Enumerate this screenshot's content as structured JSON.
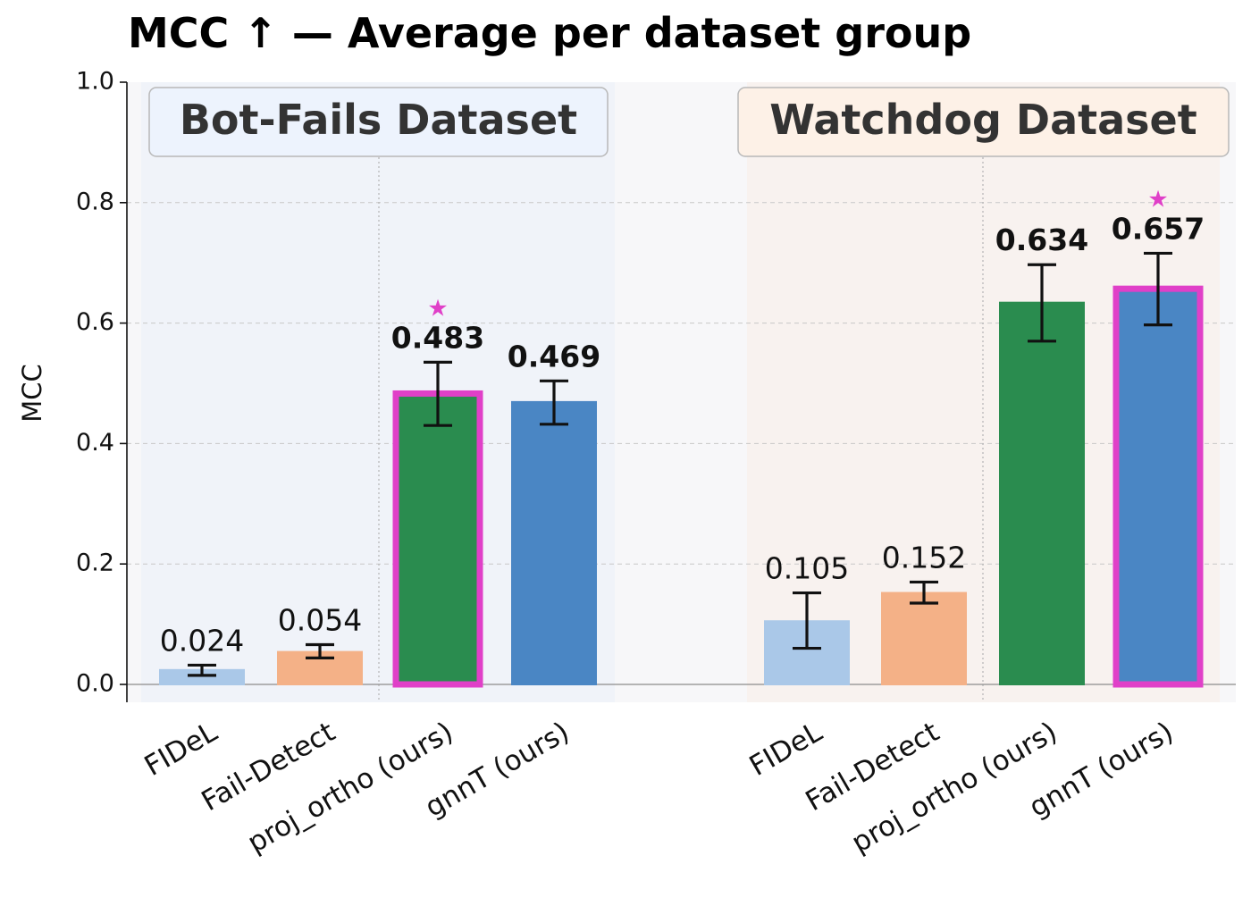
{
  "chart_data": {
    "type": "bar",
    "title": "MCC ↑ — Average per dataset group",
    "ylabel": "MCC",
    "xlabel": "",
    "ylim": [
      0,
      1.0
    ],
    "yticks": [
      "0.0",
      "0.2",
      "0.4",
      "0.6",
      "0.8",
      "1.0"
    ],
    "grid": true,
    "groups": [
      {
        "name": "Bot-Fails Dataset",
        "background_color": "#e6edf8",
        "label_box_color": "#edf3fd",
        "bars": [
          {
            "label": "FIDeL",
            "value": 0.024,
            "value_label": "0.024",
            "err_low": 0.015,
            "err_high": 0.032,
            "color": "#aac8e8",
            "bold": false,
            "best": false
          },
          {
            "label": "Fail-Detect",
            "value": 0.054,
            "value_label": "0.054",
            "err_low": 0.044,
            "err_high": 0.066,
            "color": "#f4b187",
            "bold": false,
            "best": false
          },
          {
            "label": "proj_ortho (ours)",
            "value": 0.483,
            "value_label": "0.483",
            "err_low": 0.43,
            "err_high": 0.535,
            "color": "#2a8c4f",
            "bold": true,
            "best": true
          },
          {
            "label": "gnnT (ours)",
            "value": 0.469,
            "value_label": "0.469",
            "err_low": 0.432,
            "err_high": 0.504,
            "color": "#4a86c4",
            "bold": true,
            "best": false
          }
        ]
      },
      {
        "name": "Watchdog Dataset",
        "background_color": "#f8ebe2",
        "label_box_color": "#fdf1e7",
        "bars": [
          {
            "label": "FIDeL",
            "value": 0.105,
            "value_label": "0.105",
            "err_low": 0.06,
            "err_high": 0.152,
            "color": "#aac8e8",
            "bold": false,
            "best": false
          },
          {
            "label": "Fail-Detect",
            "value": 0.152,
            "value_label": "0.152",
            "err_low": 0.135,
            "err_high": 0.17,
            "color": "#f4b187",
            "bold": false,
            "best": false
          },
          {
            "label": "proj_ortho (ours)",
            "value": 0.634,
            "value_label": "0.634",
            "err_low": 0.57,
            "err_high": 0.697,
            "color": "#2a8c4f",
            "bold": true,
            "best": false
          },
          {
            "label": "gnnT (ours)",
            "value": 0.657,
            "value_label": "0.657",
            "err_low": 0.597,
            "err_high": 0.716,
            "color": "#4a86c4",
            "bold": true,
            "best": true
          }
        ]
      }
    ],
    "best_marker": "★",
    "best_color": "#e040c8"
  }
}
